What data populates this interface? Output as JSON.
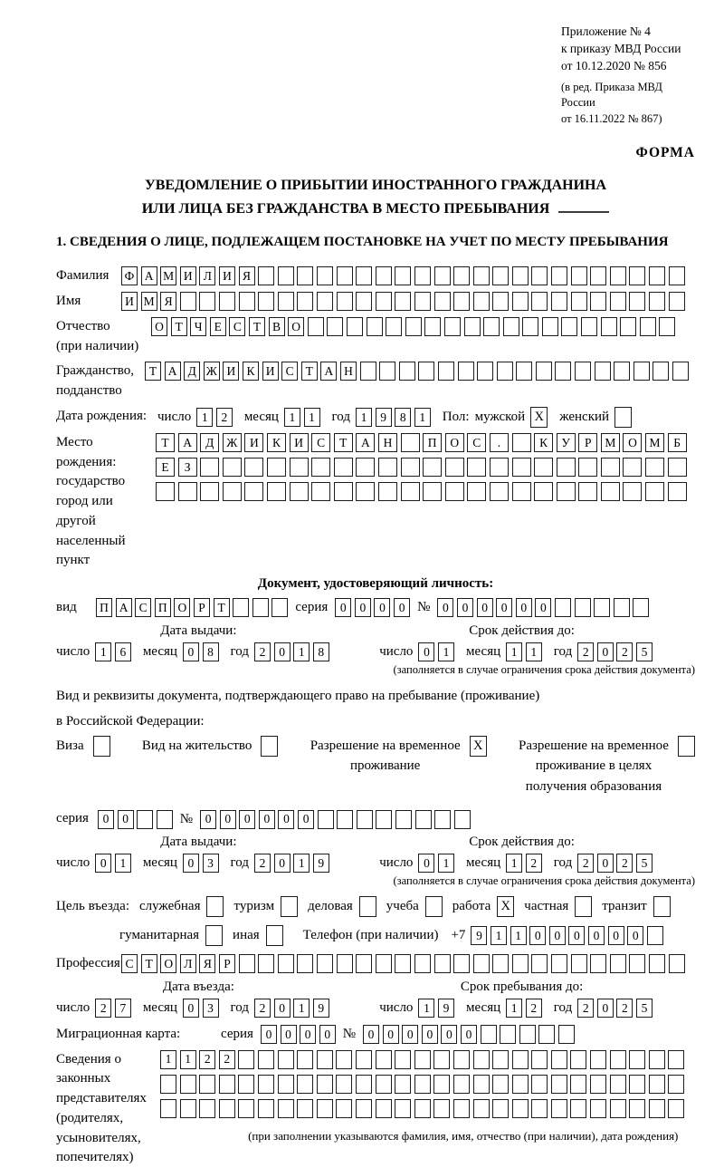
{
  "header": {
    "annex_lines": [
      "Приложение № 4",
      "к приказу МВД России",
      "от 10.12.2020 № 856"
    ],
    "revision_lines": [
      "(в ред. Приказа МВД России",
      "от 16.11.2022 № 867)"
    ],
    "form_label": "ФОРМА"
  },
  "title": {
    "line1": "УВЕДОМЛЕНИЕ О ПРИБЫТИИ ИНОСТРАННОГО ГРАЖДАНИНА",
    "line2": "ИЛИ ЛИЦА БЕЗ ГРАЖДАНСТВА В МЕСТО ПРЕБЫВАНИЯ"
  },
  "section1_heading": "1. СВЕДЕНИЯ О ЛИЦЕ, ПОДЛЕЖАЩЕМ ПОСТАНОВКЕ НА УЧЕТ ПО МЕСТУ ПРЕБЫВАНИЯ",
  "date_labels": {
    "day": "число",
    "month": "месяц",
    "year": "год"
  },
  "notes": {
    "validity": "(заполняется в случае ограничения срока действия документа)",
    "representatives": "(при заполнении указываются фамилия, имя, отчество (при наличии), дата рождения)"
  },
  "fields": {
    "surname": {
      "label": "Фамилия",
      "cells": {
        "v": "ФАМИЛИЯ",
        "n": 29
      }
    },
    "given_name": {
      "label": "Имя",
      "cells": {
        "v": "ИМЯ",
        "n": 29
      }
    },
    "patronymic": {
      "label_lines": [
        "Отчество",
        "(при наличии)"
      ],
      "cells": {
        "v": "ОТЧЕСТВО",
        "n": 27
      }
    },
    "citizenship": {
      "label_lines": [
        "Гражданство,",
        "подданство"
      ],
      "cells": {
        "v": "ТАДЖИКИСТАН",
        "n": 28
      }
    },
    "birth_date": {
      "label": "Дата рождения:",
      "day": {
        "v": "12",
        "n": 2
      },
      "month": {
        "v": "11",
        "n": 2
      },
      "year": {
        "v": "1981",
        "n": 4
      }
    },
    "sex": {
      "label": "Пол:",
      "male_label": "мужской",
      "male_mark": "X",
      "female_label": "женский",
      "female_mark": ""
    },
    "birth_place": {
      "label_lines": [
        "Место рождения:",
        "государство",
        "город или другой",
        "населенный пункт"
      ],
      "rows": [
        {
          "v": "ТАДЖИКИСТАН ПОС. КУРМОМБ",
          "n": 24
        },
        {
          "v": "ЕЗ",
          "n": 24
        },
        {
          "v": "",
          "n": 24
        }
      ]
    },
    "identity_doc": {
      "heading": "Документ, удостоверяющий личность:",
      "kind_label": "вид",
      "kind": {
        "v": "ПАСПОРТ",
        "n": 10
      },
      "series_label": "серия",
      "series": {
        "v": "0000",
        "n": 4
      },
      "number_label": "№",
      "number": {
        "v": "000000",
        "n": 11
      },
      "issue_heading": "Дата выдачи:",
      "issue": {
        "day": {
          "v": "16",
          "n": 2
        },
        "month": {
          "v": "08",
          "n": 2
        },
        "year": {
          "v": "2018",
          "n": 4
        }
      },
      "valid_heading": "Срок действия до:",
      "valid": {
        "day": {
          "v": "01",
          "n": 2
        },
        "month": {
          "v": "11",
          "n": 2
        },
        "year": {
          "v": "2025",
          "n": 4
        }
      }
    },
    "residence_doc": {
      "intro_line1": "Вид и реквизиты документа, подтверждающего право на пребывание (проживание)",
      "intro_line2": "в Российской Федерации:",
      "options": [
        {
          "lines": [
            "Виза"
          ],
          "mark": ""
        },
        {
          "lines": [
            "Вид на жительство"
          ],
          "mark": ""
        },
        {
          "lines": [
            "Разрешение на временное",
            "проживание"
          ],
          "mark": "X"
        },
        {
          "lines": [
            "Разрешение на временное",
            "проживание в целях",
            "получения образования"
          ],
          "mark": ""
        }
      ],
      "series_label": "серия",
      "series": {
        "v": "00",
        "n": 4
      },
      "number_label": "№",
      "number": {
        "v": "000000",
        "n": 14
      },
      "issue_heading": "Дата выдачи:",
      "issue": {
        "day": {
          "v": "01",
          "n": 2
        },
        "month": {
          "v": "03",
          "n": 2
        },
        "year": {
          "v": "2019",
          "n": 4
        }
      },
      "valid_heading": "Срок действия до:",
      "valid": {
        "day": {
          "v": "01",
          "n": 2
        },
        "month": {
          "v": "12",
          "n": 2
        },
        "year": {
          "v": "2025",
          "n": 4
        }
      }
    },
    "purpose": {
      "label": "Цель въезда:",
      "options_line1": [
        {
          "label": "служебная",
          "mark": ""
        },
        {
          "label": "туризм",
          "mark": ""
        },
        {
          "label": "деловая",
          "mark": ""
        },
        {
          "label": "учеба",
          "mark": ""
        },
        {
          "label": "работа",
          "mark": "X"
        },
        {
          "label": "частная",
          "mark": ""
        },
        {
          "label": "транзит",
          "mark": ""
        }
      ],
      "options_line2": [
        {
          "label": "гуманитарная",
          "mark": ""
        },
        {
          "label": "иная",
          "mark": ""
        }
      ]
    },
    "phone": {
      "label": "Телефон (при наличии)",
      "prefix": "+7",
      "cells": {
        "v": "911000000",
        "n": 10
      }
    },
    "profession": {
      "label": "Профессия",
      "cells": {
        "v": "СТОЛЯР",
        "n": 29
      }
    },
    "entry": {
      "entry_heading": "Дата въезда:",
      "entry_date": {
        "day": {
          "v": "27",
          "n": 2
        },
        "month": {
          "v": "03",
          "n": 2
        },
        "year": {
          "v": "2019",
          "n": 4
        }
      },
      "stay_heading": "Срок пребывания до:",
      "stay_until": {
        "day": {
          "v": "19",
          "n": 2
        },
        "month": {
          "v": "12",
          "n": 2
        },
        "year": {
          "v": "2025",
          "n": 4
        }
      }
    },
    "migration_card": {
      "label": "Миграционная карта:",
      "series_label": "серия",
      "series": {
        "v": "0000",
        "n": 4
      },
      "number_label": "№",
      "number": {
        "v": "000000",
        "n": 11
      }
    },
    "representatives": {
      "label_lines": [
        "Сведения о",
        "законных",
        "представителях",
        "(родителях,",
        "усыновителях,",
        "попечителях)"
      ],
      "rows": [
        {
          "v": "1122",
          "n": 27
        },
        {
          "v": "",
          "n": 27
        },
        {
          "v": "",
          "n": 27
        }
      ]
    }
  }
}
